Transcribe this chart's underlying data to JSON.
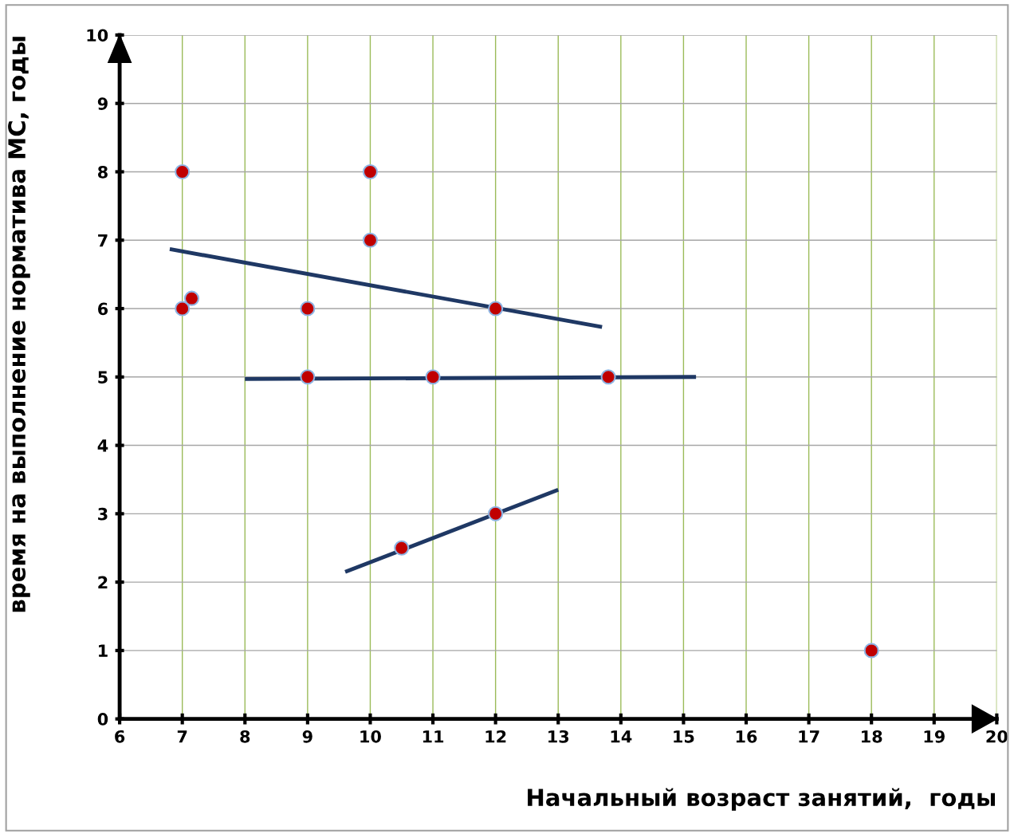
{
  "chart_data": {
    "type": "scatter",
    "xlabel": "Начальный возраст занятий,  годы",
    "ylabel": "время на выполнение норматива МС, годы",
    "xlim": [
      6,
      20
    ],
    "ylim": [
      0,
      10
    ],
    "xticks": [
      6,
      7,
      8,
      9,
      10,
      11,
      12,
      13,
      14,
      15,
      16,
      17,
      18,
      19,
      20
    ],
    "yticks": [
      0,
      1,
      2,
      3,
      4,
      5,
      6,
      7,
      8,
      9,
      10
    ],
    "grid": true,
    "legend": false,
    "series": [
      {
        "marker": "circle",
        "color": "#c00000",
        "x": [
          7,
          10,
          10,
          7,
          7.15,
          9,
          12,
          9,
          11,
          13.8,
          10.5,
          12,
          18
        ],
        "values": [
          8,
          8,
          7,
          6,
          6.15,
          6,
          6,
          5,
          5,
          5,
          2.5,
          3,
          1
        ]
      },
      {
        "type": "line",
        "color": "#1f3864",
        "x": [
          6.8,
          13.7
        ],
        "values": [
          6.87,
          5.73
        ]
      },
      {
        "type": "line",
        "color": "#1f3864",
        "x": [
          8,
          15.2
        ],
        "values": [
          4.97,
          5.0
        ]
      },
      {
        "type": "line",
        "color": "#1f3864",
        "x": [
          9.6,
          13
        ],
        "values": [
          2.15,
          3.35
        ]
      }
    ]
  }
}
